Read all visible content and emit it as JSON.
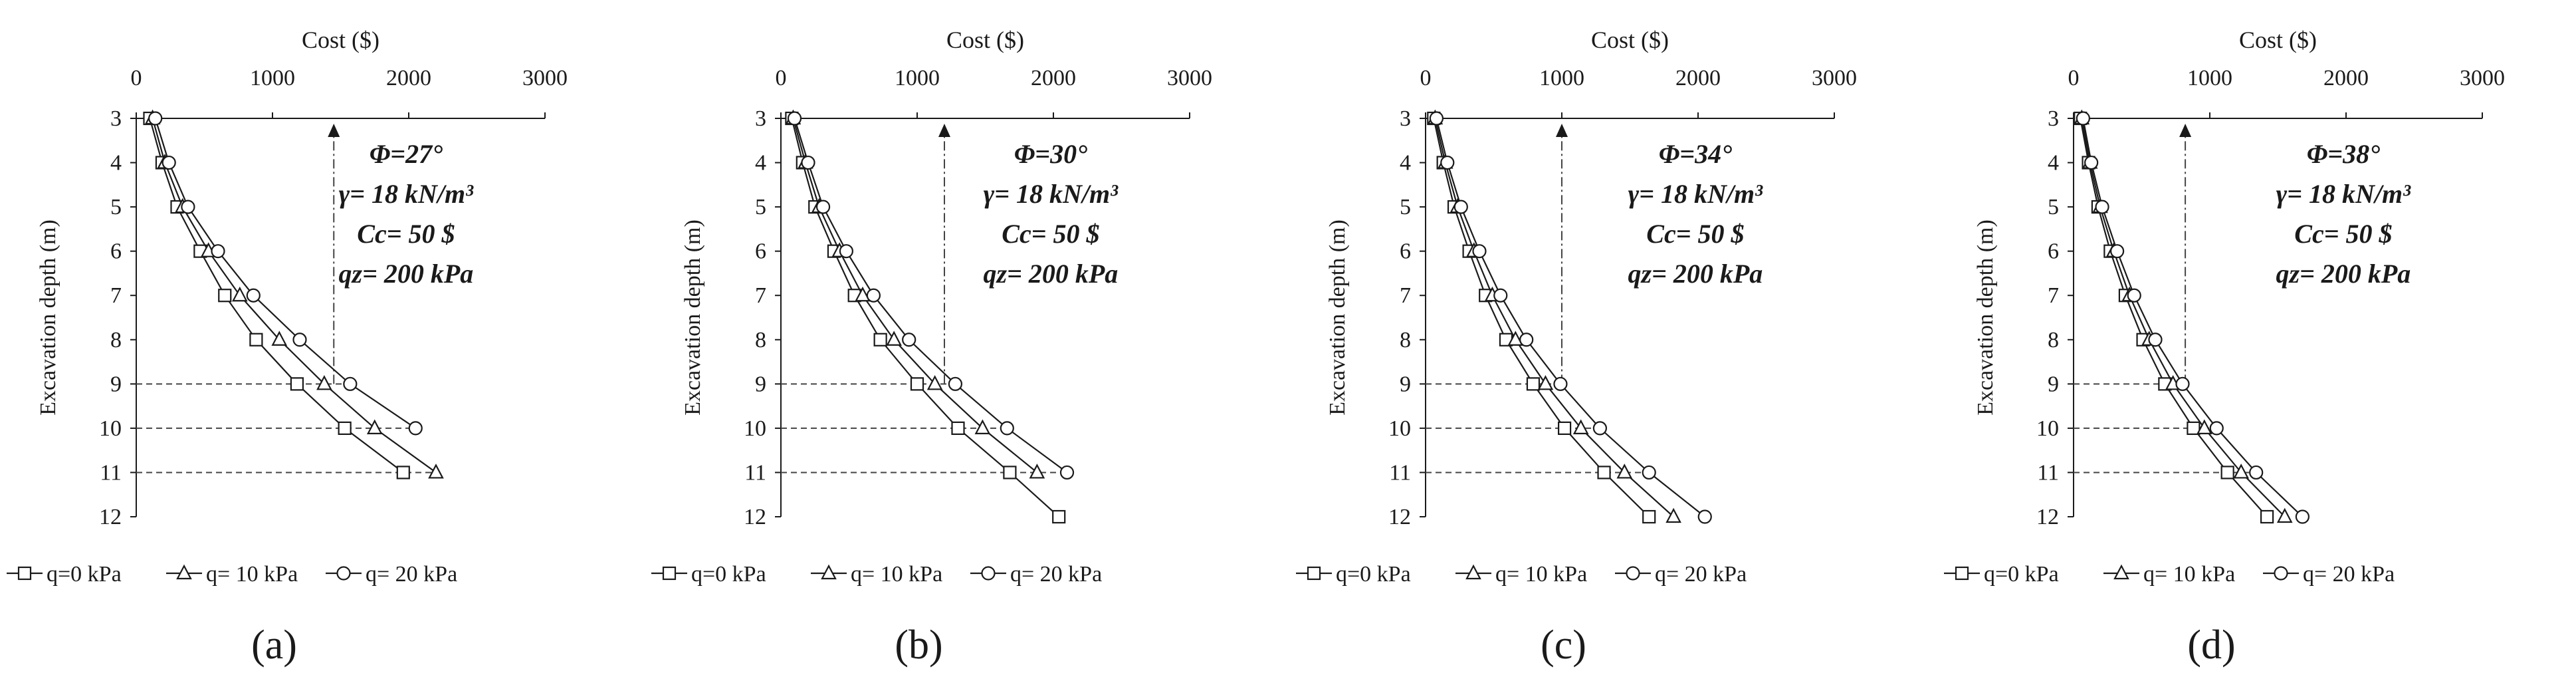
{
  "chart_data": [
    {
      "type": "line",
      "panel_label": "(a)",
      "title": "",
      "xlabel": "Cost ($)",
      "ylabel": "Excavation depth (m)",
      "xlim": [
        0,
        3000
      ],
      "ylim": [
        3,
        12
      ],
      "x_ticks": [
        "0",
        "1000",
        "2000",
        "3000"
      ],
      "y_ticks": [
        "3",
        "4",
        "5",
        "6",
        "7",
        "8",
        "9",
        "10",
        "11",
        "12"
      ],
      "annotations": [
        "Φ=27°",
        "γ= 18 kN/m³",
        "Cc= 50 $",
        "qz= 200 kPa"
      ],
      "reference_cost": 1450,
      "limit_depths": [
        9,
        10,
        11
      ],
      "series": [
        {
          "name": "q=0 kPa",
          "marker": "square",
          "depth": [
            3,
            4,
            5,
            6,
            7,
            8,
            9,
            10,
            11
          ],
          "cost": [
            100,
            190,
            300,
            470,
            650,
            880,
            1180,
            1530,
            1960
          ]
        },
        {
          "name": "q= 10 kPa",
          "marker": "triangle",
          "depth": [
            3,
            4,
            5,
            6,
            7,
            8,
            9,
            10,
            11
          ],
          "cost": [
            120,
            210,
            340,
            530,
            760,
            1050,
            1380,
            1750,
            2200
          ]
        },
        {
          "name": "q= 20 kPa",
          "marker": "circle",
          "depth": [
            3,
            4,
            5,
            6,
            7,
            8,
            9,
            10
          ],
          "cost": [
            140,
            240,
            380,
            600,
            860,
            1200,
            1570,
            2050
          ]
        }
      ]
    },
    {
      "type": "line",
      "panel_label": "(b)",
      "title": "",
      "xlabel": "Cost ($)",
      "ylabel": "Excavation depth (m)",
      "xlim": [
        0,
        3000
      ],
      "ylim": [
        3,
        12
      ],
      "x_ticks": [
        "0",
        "1000",
        "2000",
        "3000"
      ],
      "y_ticks": [
        "3",
        "4",
        "5",
        "6",
        "7",
        "8",
        "9",
        "10",
        "11",
        "12"
      ],
      "annotations": [
        "Φ=30°",
        "γ= 18 kN/m³",
        "Cc= 50 $",
        "qz= 200 kPa"
      ],
      "reference_cost": 1200,
      "limit_depths": [
        9,
        10,
        11
      ],
      "series": [
        {
          "name": "q=0 kPa",
          "marker": "square",
          "depth": [
            3,
            4,
            5,
            6,
            7,
            8,
            9,
            10,
            11,
            12
          ],
          "cost": [
            80,
            160,
            250,
            390,
            540,
            730,
            1000,
            1300,
            1680,
            2040
          ]
        },
        {
          "name": "q= 10 kPa",
          "marker": "triangle",
          "depth": [
            3,
            4,
            5,
            6,
            7,
            8,
            9,
            10,
            11
          ],
          "cost": [
            90,
            180,
            280,
            430,
            600,
            830,
            1130,
            1480,
            1880
          ]
        },
        {
          "name": "q= 20 kPa",
          "marker": "circle",
          "depth": [
            3,
            4,
            5,
            6,
            7,
            8,
            9,
            10,
            11
          ],
          "cost": [
            100,
            200,
            310,
            480,
            680,
            940,
            1280,
            1660,
            2100
          ]
        }
      ]
    },
    {
      "type": "line",
      "panel_label": "(c)",
      "title": "",
      "xlabel": "Cost ($)",
      "ylabel": "Excavation depth (m)",
      "xlim": [
        0,
        3000
      ],
      "ylim": [
        3,
        12
      ],
      "x_ticks": [
        "0",
        "1000",
        "2000",
        "3000"
      ],
      "y_ticks": [
        "3",
        "4",
        "5",
        "6",
        "7",
        "8",
        "9",
        "10",
        "11",
        "12"
      ],
      "annotations": [
        "Φ=34°",
        "γ= 18 kN/m³",
        "Cc= 50 $",
        "qz= 200 kPa"
      ],
      "reference_cost": 1000,
      "limit_depths": [
        9,
        10,
        11
      ],
      "series": [
        {
          "name": "q=0 kPa",
          "marker": "square",
          "depth": [
            3,
            4,
            5,
            6,
            7,
            8,
            9,
            10,
            11,
            12
          ],
          "cost": [
            60,
            130,
            210,
            320,
            440,
            590,
            790,
            1020,
            1310,
            1640
          ]
        },
        {
          "name": "q= 10 kPa",
          "marker": "triangle",
          "depth": [
            3,
            4,
            5,
            6,
            7,
            8,
            9,
            10,
            11,
            12
          ],
          "cost": [
            70,
            145,
            235,
            355,
            490,
            660,
            880,
            1140,
            1460,
            1820
          ]
        },
        {
          "name": "q= 20 kPa",
          "marker": "circle",
          "depth": [
            3,
            4,
            5,
            6,
            7,
            8,
            9,
            10,
            11,
            12
          ],
          "cost": [
            80,
            160,
            260,
            395,
            550,
            740,
            990,
            1280,
            1640,
            2050
          ]
        }
      ]
    },
    {
      "type": "line",
      "panel_label": "(d)",
      "title": "",
      "xlabel": "Cost ($)",
      "ylabel": "Excavation depth (m)",
      "xlim": [
        0,
        3000
      ],
      "ylim": [
        3,
        12
      ],
      "x_ticks": [
        "0",
        "1000",
        "2000",
        "3000"
      ],
      "y_ticks": [
        "3",
        "4",
        "5",
        "6",
        "7",
        "8",
        "9",
        "10",
        "11",
        "12"
      ],
      "annotations": [
        "Φ=38°",
        "γ= 18 kN/m³",
        "Cc= 50 $",
        "qz= 200 kPa"
      ],
      "reference_cost": 820,
      "limit_depths": [
        9,
        10,
        11
      ],
      "series": [
        {
          "name": "q=0 kPa",
          "marker": "square",
          "depth": [
            3,
            4,
            5,
            6,
            7,
            8,
            9,
            10,
            11,
            12
          ],
          "cost": [
            50,
            110,
            180,
            270,
            380,
            510,
            670,
            880,
            1130,
            1420
          ]
        },
        {
          "name": "q= 10 kPa",
          "marker": "triangle",
          "depth": [
            3,
            4,
            5,
            6,
            7,
            8,
            9,
            10,
            11,
            12
          ],
          "cost": [
            60,
            120,
            195,
            295,
            410,
            555,
            730,
            960,
            1230,
            1550
          ]
        },
        {
          "name": "q= 20 kPa",
          "marker": "circle",
          "depth": [
            3,
            4,
            5,
            6,
            7,
            8,
            9,
            10,
            11,
            12
          ],
          "cost": [
            70,
            130,
            210,
            320,
            445,
            600,
            800,
            1050,
            1340,
            1680
          ]
        }
      ]
    }
  ]
}
